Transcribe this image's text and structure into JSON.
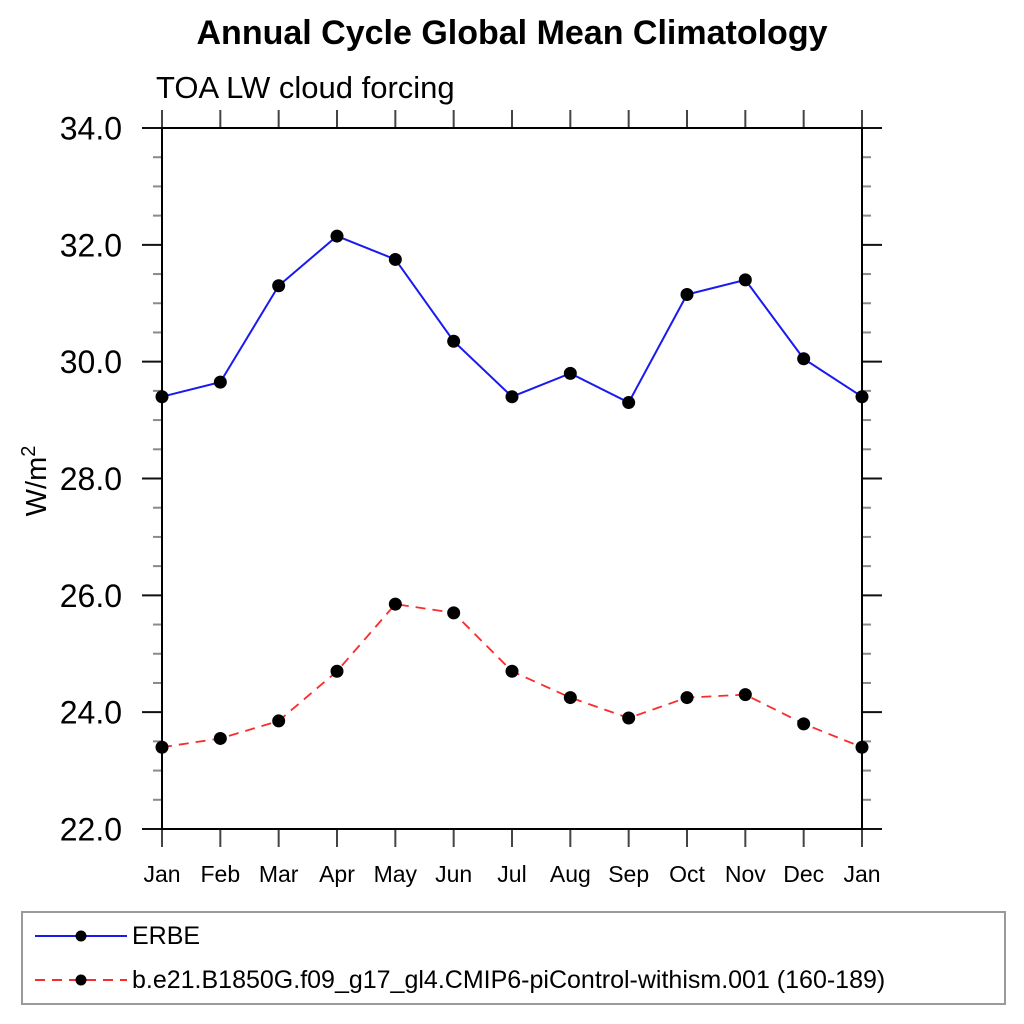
{
  "header": {
    "title": "Annual Cycle Global Mean Climatology",
    "subtitle": "TOA LW cloud forcing"
  },
  "chart_data": {
    "type": "line",
    "title": "Annual Cycle Global Mean Climatology",
    "subtitle": "TOA LW cloud forcing",
    "ylabel": "W/m²",
    "xlabel": "",
    "categories": [
      "Jan",
      "Feb",
      "Mar",
      "Apr",
      "May",
      "Jun",
      "Jul",
      "Aug",
      "Sep",
      "Oct",
      "Nov",
      "Dec",
      "Jan"
    ],
    "series": [
      {
        "name": "ERBE",
        "color": "#1a1af0",
        "line_style": "solid",
        "marker": "black-filled-circle",
        "values": [
          29.4,
          29.65,
          31.3,
          32.15,
          31.75,
          30.35,
          29.4,
          29.8,
          29.3,
          31.15,
          31.4,
          30.05,
          29.4
        ]
      },
      {
        "name": "b.e21.B1850G.f09_g17_gl4.CMIP6-piControl-withism.001 (160-189)",
        "color": "#f82c2c",
        "line_style": "dashed",
        "marker": "black-filled-circle",
        "values": [
          23.4,
          23.55,
          23.85,
          24.7,
          25.85,
          25.7,
          24.7,
          24.25,
          23.9,
          24.25,
          24.3,
          23.8,
          23.4
        ]
      }
    ],
    "ylim": [
      22.0,
      34.0
    ],
    "ytick_labels": [
      "22.0",
      "24.0",
      "26.0",
      "28.0",
      "30.0",
      "32.0",
      "34.0"
    ],
    "y_major_step": 2.0,
    "y_minor_step": 0.5,
    "grid": "off",
    "legend_position": "bottom-box",
    "marker_color": "#000000",
    "frame_color": "#000000"
  }
}
